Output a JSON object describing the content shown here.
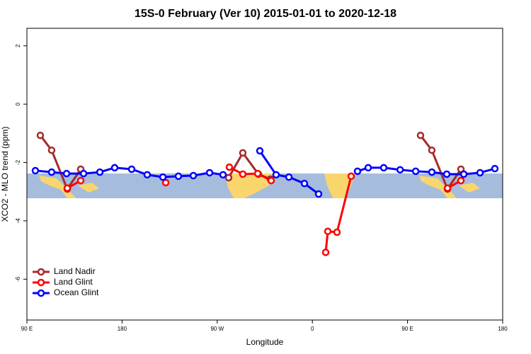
{
  "chart_data": {
    "type": "line",
    "title": "15S-0 February (Ver 10)   2015-01-01 to 2020-12-18",
    "x_label": "Longitude",
    "y_label": "XCO2 - MLO trend (ppm)",
    "xlim": [
      90,
      540
    ],
    "ylim": [
      -7.4,
      2.6
    ],
    "xticks": [
      {
        "value": 90,
        "label": "90 E"
      },
      180,
      {
        "value": 270,
        "label": "90 W"
      },
      {
        "value": 360,
        "label": "0"
      },
      {
        "value": 450,
        "label": "90 E"
      },
      {
        "value": 540,
        "label": "180"
      }
    ],
    "yticks": [
      2,
      0,
      -2,
      -4,
      -6
    ],
    "legend": "bottom-left",
    "series": [
      {
        "name": "Land Nadir",
        "color": "#a52a2a",
        "x": [
          102.7,
          113.4,
          128.2,
          140.9,
          null,
          280.8,
          294.2,
          309.0,
          320.4,
          null,
          462.3,
          473.0,
          487.8,
          500.5
        ],
        "values": [
          -1.07,
          -1.58,
          -2.91,
          -2.23,
          null,
          -2.52,
          -1.67,
          -2.4,
          -2.57,
          null,
          -1.07,
          -1.58,
          -2.91,
          -2.23
        ]
      },
      {
        "name": "Land Glint",
        "color": "#ff0000",
        "x": [
          128.2,
          140.9,
          null,
          221.3,
          null,
          281.5,
          294.2,
          308.3,
          321.0,
          null,
          372.6,
          374.6,
          383.3,
          396.7,
          null,
          487.8,
          500.5
        ],
        "values": [
          -2.88,
          -2.62,
          null,
          -2.69,
          null,
          -2.16,
          -2.4,
          -2.38,
          -2.62,
          null,
          -5.08,
          -4.36,
          -4.39,
          -2.47,
          null,
          -2.88,
          -2.62
        ]
      },
      {
        "name": "Ocean Glint",
        "color": "#0000ff",
        "x": [
          98.0,
          113.4,
          127.5,
          143.6,
          159.0,
          173.0,
          189.1,
          203.8,
          218.6,
          233.3,
          247.4,
          262.8,
          275.5,
          null,
          310.3,
          325.7,
          337.8,
          352.5,
          365.9,
          null,
          402.7,
          412.8,
          427.5,
          443.0,
          457.7,
          473.0,
          487.1,
          503.2,
          518.6,
          532.6
        ],
        "values": [
          -2.28,
          -2.33,
          -2.38,
          -2.38,
          -2.33,
          -2.18,
          -2.23,
          -2.42,
          -2.5,
          -2.47,
          -2.45,
          -2.35,
          -2.42,
          null,
          -1.6,
          -2.42,
          -2.5,
          -2.72,
          -3.08,
          null,
          -2.3,
          -2.18,
          -2.18,
          -2.25,
          -2.3,
          -2.33,
          -2.4,
          -2.4,
          -2.35,
          -2.21
        ]
      }
    ]
  }
}
